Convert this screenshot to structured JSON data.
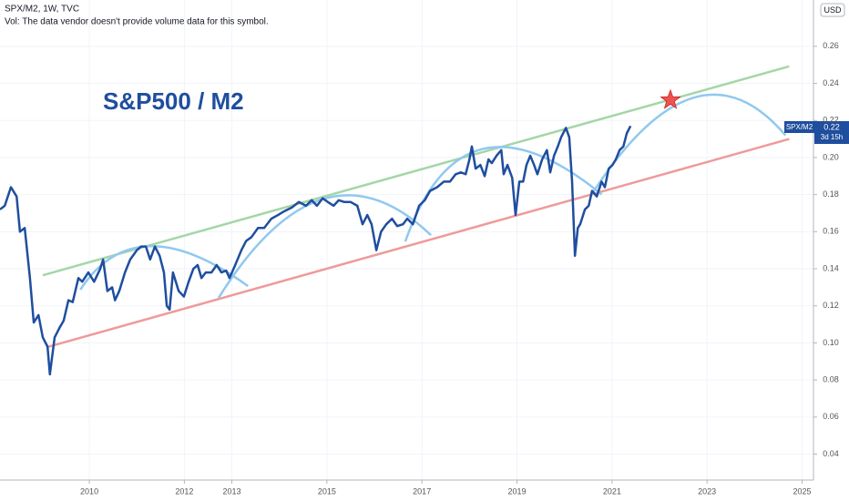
{
  "chart_data": {
    "type": "line",
    "title": "SPX/M2, 1W, TVC",
    "subtitle": "Vol: The data vendor doesn't provide volume data for this symbol.",
    "annotation": "S&P500 / M2",
    "currency": "USD",
    "price_label": {
      "value": "0.22",
      "countdown": "3d 15h"
    },
    "grid": true,
    "xlim": [
      2008.12,
      2025.24
    ],
    "xticks": [
      2010,
      2012,
      2013,
      2015,
      2017,
      2019,
      2021,
      2023,
      2025
    ],
    "ylim": [
      0.026,
      0.285
    ],
    "yticks": [
      0.04,
      0.06,
      0.08,
      {
        "value": 0.1,
        "label": "0.10"
      },
      0.12,
      0.14,
      0.16,
      0.18,
      {
        "value": 0.2,
        "label": "0.20"
      },
      0.22,
      0.24,
      0.26
    ],
    "x": [
      2008.12,
      2008.22,
      2008.35,
      2008.47,
      2008.54,
      2008.64,
      2008.75,
      2008.83,
      2008.93,
      2009.02,
      2009.12,
      2009.17,
      2009.27,
      2009.37,
      2009.46,
      2009.56,
      2009.65,
      2009.77,
      2009.85,
      2009.98,
      2010.1,
      2010.23,
      2010.29,
      2010.38,
      2010.48,
      2010.54,
      2010.63,
      2010.75,
      2010.86,
      2011.0,
      2011.09,
      2011.19,
      2011.28,
      2011.38,
      2011.48,
      2011.57,
      2011.63,
      2011.69,
      2011.76,
      2011.88,
      2011.99,
      2012.09,
      2012.19,
      2012.28,
      2012.36,
      2012.45,
      2012.57,
      2012.68,
      2012.78,
      2012.88,
      2012.95,
      2013.07,
      2013.2,
      2013.3,
      2013.41,
      2013.55,
      2013.68,
      2013.83,
      2013.97,
      2014.1,
      2014.26,
      2014.41,
      2014.56,
      2014.68,
      2014.79,
      2014.91,
      2015.02,
      2015.14,
      2015.25,
      2015.37,
      2015.5,
      2015.64,
      2015.75,
      2015.85,
      2015.94,
      2016.04,
      2016.14,
      2016.25,
      2016.37,
      2016.48,
      2016.6,
      2016.69,
      2016.81,
      2016.94,
      2017.06,
      2017.17,
      2017.32,
      2017.46,
      2017.59,
      2017.71,
      2017.82,
      2017.92,
      2018.0,
      2018.05,
      2018.13,
      2018.23,
      2018.32,
      2018.4,
      2018.47,
      2018.57,
      2018.67,
      2018.72,
      2018.8,
      2018.9,
      2018.97,
      2019.05,
      2019.13,
      2019.2,
      2019.28,
      2019.36,
      2019.43,
      2019.53,
      2019.63,
      2019.7,
      2019.78,
      2019.86,
      2019.93,
      2020.03,
      2020.1,
      2020.16,
      2020.22,
      2020.28,
      2020.33,
      2020.43,
      2020.51,
      2020.58,
      2020.68,
      2020.78,
      2020.85,
      2020.93,
      2021.01,
      2021.08,
      2021.16,
      2021.24,
      2021.31,
      2021.39
    ],
    "series": [
      {
        "name": "SPX/M2",
        "color": "#1f4e9e",
        "values": [
          0.172,
          0.174,
          0.184,
          0.179,
          0.16,
          0.162,
          0.135,
          0.111,
          0.115,
          0.103,
          0.098,
          0.083,
          0.103,
          0.108,
          0.112,
          0.123,
          0.122,
          0.135,
          0.133,
          0.138,
          0.133,
          0.14,
          0.145,
          0.128,
          0.13,
          0.123,
          0.128,
          0.138,
          0.145,
          0.15,
          0.152,
          0.152,
          0.145,
          0.152,
          0.147,
          0.138,
          0.12,
          0.118,
          0.138,
          0.128,
          0.125,
          0.133,
          0.14,
          0.142,
          0.135,
          0.138,
          0.138,
          0.142,
          0.138,
          0.139,
          0.135,
          0.142,
          0.15,
          0.155,
          0.157,
          0.162,
          0.162,
          0.167,
          0.169,
          0.171,
          0.173,
          0.176,
          0.174,
          0.177,
          0.174,
          0.178,
          0.176,
          0.174,
          0.177,
          0.176,
          0.176,
          0.174,
          0.164,
          0.169,
          0.164,
          0.15,
          0.16,
          0.164,
          0.167,
          0.163,
          0.164,
          0.167,
          0.164,
          0.174,
          0.177,
          0.182,
          0.184,
          0.187,
          0.187,
          0.191,
          0.192,
          0.191,
          0.199,
          0.206,
          0.194,
          0.196,
          0.19,
          0.199,
          0.197,
          0.201,
          0.204,
          0.191,
          0.196,
          0.189,
          0.169,
          0.187,
          0.187,
          0.196,
          0.201,
          0.196,
          0.191,
          0.199,
          0.204,
          0.192,
          0.201,
          0.206,
          0.211,
          0.216,
          0.211,
          0.187,
          0.147,
          0.162,
          0.164,
          0.172,
          0.174,
          0.182,
          0.179,
          0.187,
          0.184,
          0.194,
          0.196,
          0.199,
          0.204,
          0.206,
          0.213,
          0.217
        ]
      }
    ],
    "trendlines": [
      {
        "color": "#a5d6a7",
        "x": [
          2009.02,
          2024.73
        ],
        "y": [
          0.1365,
          0.2492
        ]
      },
      {
        "color": "#ef9a9a",
        "x": [
          2009.12,
          2024.73
        ],
        "y": [
          0.0978,
          0.21
        ]
      }
    ],
    "arcs": {
      "color": "#90c8ef",
      "items": [
        {
          "x": [
            2009.81,
            2011.28,
            2013.34
          ],
          "y": [
            0.1287,
            0.1522,
            0.1306
          ]
        },
        {
          "x": [
            2012.72,
            2014.93,
            2017.19
          ],
          "y": [
            0.1243,
            0.1777,
            0.1581
          ]
        },
        {
          "x": [
            2016.65,
            2018.28,
            2020.78
          ],
          "y": [
            0.1547,
            0.2046,
            0.1801
          ]
        },
        {
          "x": [
            2020.55,
            2022.69,
            2024.65
          ],
          "y": [
            0.1792,
            0.2321,
            0.212
          ]
        }
      ]
    },
    "star": {
      "color": "#ef5350",
      "x": 2022.23,
      "y": 0.231
    }
  }
}
